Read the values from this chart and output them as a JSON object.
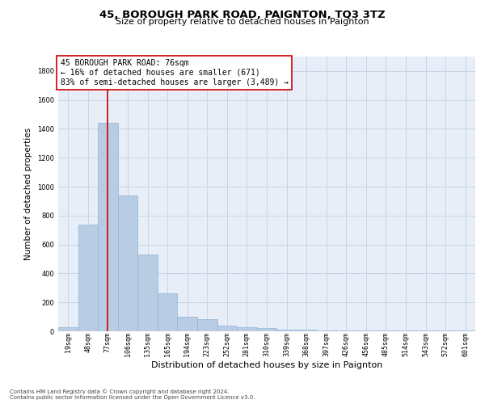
{
  "title1": "45, BOROUGH PARK ROAD, PAIGNTON, TQ3 3TZ",
  "title2": "Size of property relative to detached houses in Paignton",
  "xlabel": "Distribution of detached houses by size in Paignton",
  "ylabel": "Number of detached properties",
  "categories": [
    "19sqm",
    "48sqm",
    "77sqm",
    "106sqm",
    "135sqm",
    "165sqm",
    "194sqm",
    "223sqm",
    "252sqm",
    "281sqm",
    "310sqm",
    "339sqm",
    "368sqm",
    "397sqm",
    "426sqm",
    "456sqm",
    "485sqm",
    "514sqm",
    "543sqm",
    "572sqm",
    "601sqm"
  ],
  "values": [
    30,
    740,
    1440,
    940,
    530,
    265,
    100,
    85,
    40,
    30,
    20,
    10,
    10,
    5,
    5,
    5,
    5,
    5,
    5,
    5,
    5
  ],
  "bar_color": "#b8cce4",
  "bar_edge_color": "#8fb4d4",
  "red_line_index": 2,
  "ylim": [
    0,
    1900
  ],
  "yticks": [
    0,
    200,
    400,
    600,
    800,
    1000,
    1200,
    1400,
    1600,
    1800
  ],
  "annotation_line1": "45 BOROUGH PARK ROAD: 76sqm",
  "annotation_line2": "← 16% of detached houses are smaller (671)",
  "annotation_line3": "83% of semi-detached houses are larger (3,489) →",
  "footnote1": "Contains HM Land Registry data © Crown copyright and database right 2024.",
  "footnote2": "Contains public sector information licensed under the Open Government Licence v3.0.",
  "bg_color": "#ffffff",
  "plot_bg_color": "#e8eef8",
  "grid_color": "#c8d4e8",
  "annotation_box_color": "#ffffff",
  "annotation_box_edge_color": "#cc0000",
  "red_line_color": "#cc0000",
  "title1_fontsize": 9.5,
  "title2_fontsize": 8,
  "ylabel_fontsize": 7.5,
  "xlabel_fontsize": 8,
  "tick_fontsize": 6,
  "annot_fontsize": 7,
  "footnote_fontsize": 5
}
